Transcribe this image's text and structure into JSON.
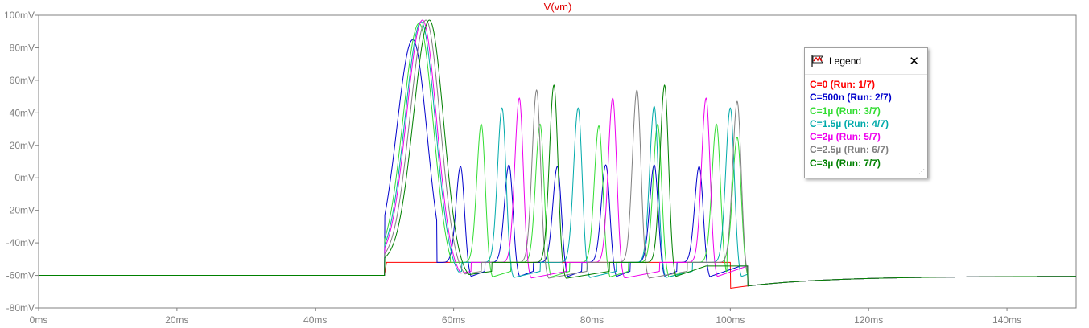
{
  "chart_data": {
    "type": "line",
    "title": "V(vm)",
    "x_ticks": [
      "0ms",
      "20ms",
      "40ms",
      "60ms",
      "80ms",
      "100ms",
      "120ms",
      "140ms"
    ],
    "y_ticks": [
      "100mV",
      "80mV",
      "60mV",
      "40mV",
      "20mV",
      "0mV",
      "-20mV",
      "-40mV",
      "-60mV",
      "-80mV"
    ],
    "xlim": [
      0,
      150
    ],
    "ylim": [
      -80,
      100
    ],
    "x_unit": "ms",
    "y_unit": "mV",
    "grid": true,
    "legend_position": "top-right",
    "pulse": {
      "start": 50,
      "end": 100,
      "rest_level": -60,
      "plateau_level": -52
    },
    "series": [
      {
        "name": "C=0  (Run: 1/7)",
        "color": "#ff0000",
        "peaks": []
      },
      {
        "name": "C=500n  (Run: 2/7)",
        "color": "#0000cc",
        "peaks": [
          [
            54.1,
            85
          ],
          [
            61.0,
            7
          ],
          [
            68.0,
            8
          ],
          [
            75.0,
            7
          ],
          [
            82.0,
            8
          ],
          [
            89.0,
            8
          ],
          [
            95.5,
            7
          ]
        ]
      },
      {
        "name": "C=1µ  (Run: 3/7)",
        "color": "#33dd33",
        "peaks": [
          [
            55.0,
            95
          ],
          [
            64.0,
            33
          ],
          [
            72.5,
            33
          ],
          [
            81.0,
            32
          ],
          [
            89.5,
            33
          ],
          [
            98.0,
            33
          ],
          [
            101.0,
            25
          ]
        ]
      },
      {
        "name": "C=1.5µ  (Run: 4/7)",
        "color": "#00aaaa",
        "peaks": [
          [
            55.3,
            96
          ],
          [
            67.0,
            43
          ],
          [
            78.0,
            43
          ],
          [
            89.0,
            44
          ],
          [
            100.0,
            43
          ]
        ]
      },
      {
        "name": "C=2µ  (Run: 5/7)",
        "color": "#ee00ee",
        "peaks": [
          [
            55.5,
            97
          ],
          [
            69.5,
            49
          ],
          [
            83.0,
            49
          ],
          [
            96.5,
            49
          ]
        ]
      },
      {
        "name": "C=2.5µ  (Run: 6/7)",
        "color": "#808080",
        "peaks": [
          [
            56.0,
            97
          ],
          [
            72.0,
            54
          ],
          [
            86.5,
            54
          ],
          [
            101.0,
            47
          ]
        ]
      },
      {
        "name": "C=3µ  (Run: 7/7)",
        "color": "#008000",
        "peaks": [
          [
            56.5,
            97
          ],
          [
            74.5,
            57
          ],
          [
            90.5,
            57
          ]
        ]
      }
    ]
  },
  "legend": {
    "title": "Legend",
    "close_glyph": "✕"
  }
}
